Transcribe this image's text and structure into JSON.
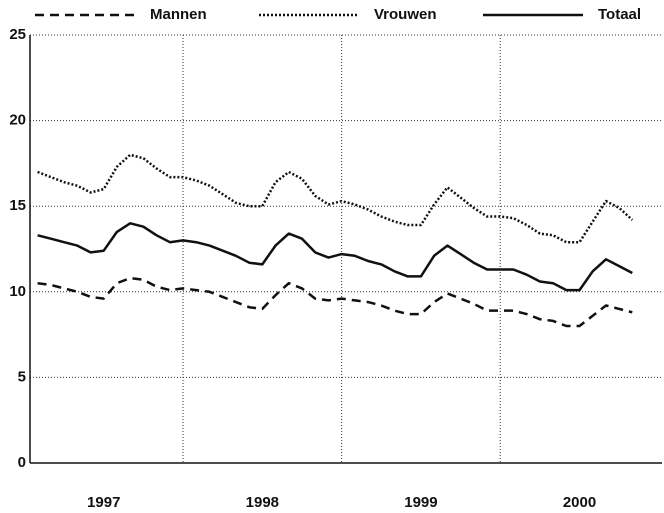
{
  "chart_data": {
    "type": "line",
    "x": [
      1997.083,
      1997.167,
      1997.25,
      1997.333,
      1997.417,
      1997.5,
      1997.583,
      1997.667,
      1997.75,
      1997.833,
      1997.917,
      1998.0,
      1998.083,
      1998.167,
      1998.25,
      1998.333,
      1998.417,
      1998.5,
      1998.583,
      1998.667,
      1998.75,
      1998.833,
      1998.917,
      1999.0,
      1999.083,
      1999.167,
      1999.25,
      1999.333,
      1999.417,
      1999.5,
      1999.583,
      1999.667,
      1999.75,
      1999.833,
      1999.917,
      2000.0,
      2000.083,
      2000.167,
      2000.25,
      2000.333,
      2000.417,
      2000.5,
      2000.583,
      2000.667,
      2000.75,
      2000.833
    ],
    "series": [
      {
        "name": "Mannen",
        "color": "#111111",
        "style": "dashed",
        "values": [
          10.5,
          10.4,
          10.2,
          10.0,
          9.7,
          9.6,
          10.5,
          10.8,
          10.7,
          10.3,
          10.1,
          10.2,
          10.1,
          10.0,
          9.7,
          9.4,
          9.1,
          9.0,
          9.8,
          10.5,
          10.2,
          9.6,
          9.5,
          9.6,
          9.5,
          9.4,
          9.2,
          8.9,
          8.7,
          8.7,
          9.4,
          9.9,
          9.6,
          9.3,
          8.9,
          8.9,
          8.9,
          8.7,
          8.4,
          8.3,
          8.0,
          8.0,
          8.6,
          9.2,
          9.0,
          8.8
        ]
      },
      {
        "name": "Vrouwen",
        "color": "#111111",
        "style": "dotted",
        "values": [
          17.0,
          16.7,
          16.4,
          16.2,
          15.8,
          16.0,
          17.3,
          18.0,
          17.8,
          17.2,
          16.7,
          16.7,
          16.5,
          16.2,
          15.7,
          15.2,
          15.0,
          15.0,
          16.4,
          17.0,
          16.6,
          15.6,
          15.1,
          15.3,
          15.1,
          14.8,
          14.4,
          14.1,
          13.9,
          13.9,
          15.1,
          16.1,
          15.5,
          14.9,
          14.4,
          14.4,
          14.3,
          13.9,
          13.4,
          13.3,
          12.9,
          12.9,
          14.1,
          15.3,
          14.9,
          14.2
        ]
      },
      {
        "name": "Totaal",
        "color": "#111111",
        "style": "solid",
        "values": [
          13.3,
          13.1,
          12.9,
          12.7,
          12.3,
          12.4,
          13.5,
          14.0,
          13.8,
          13.3,
          12.9,
          13.0,
          12.9,
          12.7,
          12.4,
          12.1,
          11.7,
          11.6,
          12.7,
          13.4,
          13.1,
          12.3,
          12.0,
          12.2,
          12.1,
          11.8,
          11.6,
          11.2,
          10.9,
          10.9,
          12.1,
          12.7,
          12.2,
          11.7,
          11.3,
          11.3,
          11.3,
          11.0,
          10.6,
          10.5,
          10.1,
          10.1,
          11.2,
          11.9,
          11.5,
          11.1
        ]
      }
    ],
    "xlim": [
      1997.035,
      2001.02
    ],
    "xticks": [
      {
        "value": 1997.5,
        "label": "1997"
      },
      {
        "value": 1998.5,
        "label": "1998"
      },
      {
        "value": 1999.5,
        "label": "1999"
      },
      {
        "value": 2000.5,
        "label": "2000"
      }
    ],
    "ylim": [
      0,
      25
    ],
    "yticks": [
      0,
      5,
      10,
      15,
      20,
      25
    ],
    "grid": true,
    "legend": "top"
  }
}
